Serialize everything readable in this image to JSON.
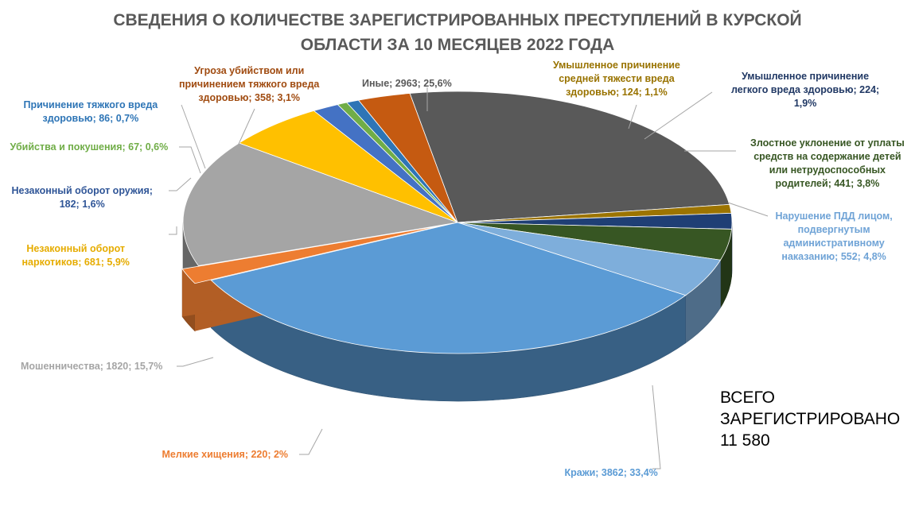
{
  "chart_data": {
    "type": "pie",
    "title": [
      "СВЕДЕНИЯ О КОЛИЧЕСТВЕ ЗАРЕГИСТРИРОВАННЫХ ПРЕСТУПЛЕНИЙ В КУРСКОЙ",
      "ОБЛАСТИ ЗА 10 МЕСЯЦЕВ 2022 ГОДА"
    ],
    "slices": [
      {
        "name": "Иные",
        "value": 2963,
        "percent": "25,6%",
        "color": "#595959",
        "label_lines": [
          "Иные; 2963; 25,6%"
        ],
        "label_color": "#595959"
      },
      {
        "name": "Умышленное причинение средней тяжести вреда здоровью",
        "value": 124,
        "percent": "1,1%",
        "color": "#9C7400",
        "label_lines": [
          "Умышленное причинение",
          "средней тяжести вреда",
          "здоровью; 124; 1,1%"
        ],
        "label_color": "#997300"
      },
      {
        "name": "Умышленное причинение легкого вреда здоровью",
        "value": 224,
        "percent": "1,9%",
        "color": "#1F3F75",
        "label_lines": [
          "Умышленное причинение",
          "легкого вреда здоровью; 224;",
          "1,9%"
        ],
        "label_color": "#203864"
      },
      {
        "name": "Злостное уклонение от уплаты средств на содержание детей или нетрудоспособных родителей",
        "value": 441,
        "percent": "3,8%",
        "color": "#375623",
        "label_lines": [
          "Злостное уклонение от уплаты",
          "средств на содержание детей",
          "или нетрудоспособных",
          "родителей; 441; 3,8%"
        ],
        "label_color": "#375623"
      },
      {
        "name": "Нарушение ПДД лицом, подвергнутым административному наказанию",
        "value": 552,
        "percent": "4,8%",
        "color": "#7EAEDB",
        "label_lines": [
          "Нарушение ПДД лицом,",
          "подвергнутым",
          "административному",
          "наказанию; 552; 4,8%"
        ],
        "label_color": "#6FA3D6"
      },
      {
        "name": "Кражи",
        "value": 3862,
        "percent": "33,4%",
        "color": "#5B9BD5",
        "label_lines": [
          "Кражи; 3862; 33,4%"
        ],
        "label_color": "#5B9BD5"
      },
      {
        "name": "Мелкие хищения",
        "value": 220,
        "percent": "2%",
        "color": "#ED7D31",
        "label_lines": [
          "Мелкие хищения; 220; 2%"
        ],
        "label_color": "#ED7D31"
      },
      {
        "name": "Мошенничества",
        "value": 1820,
        "percent": "15,7%",
        "color": "#A5A5A5",
        "label_lines": [
          "Мошенничества; 1820; 15,7%"
        ],
        "label_color": "#A5A5A5"
      },
      {
        "name": "Незаконный оборот наркотиков",
        "value": 681,
        "percent": "5,9%",
        "color": "#FFC000",
        "label_lines": [
          "Незаконный оборот",
          "наркотиков; 681; 5,9%"
        ],
        "label_color": "#E6AC00"
      },
      {
        "name": "Незаконный оборот оружия",
        "value": 182,
        "percent": "1,6%",
        "color": "#4472C4",
        "label_lines": [
          "Незаконный оборот оружия;",
          "182; 1,6%"
        ],
        "label_color": "#2F5597"
      },
      {
        "name": "Убийства и покушения",
        "value": 67,
        "percent": "0,6%",
        "color": "#70AD47",
        "label_lines": [
          "Убийства и покушения; 67; 0,6%"
        ],
        "label_color": "#70AD47"
      },
      {
        "name": "Причинение тяжкого вреда здоровью",
        "value": 86,
        "percent": "0,7%",
        "color": "#2E75B6",
        "label_lines": [
          "Причинение тяжкого вреда",
          "здоровью; 86; 0,7%"
        ],
        "label_color": "#2E75B6"
      },
      {
        "name": "Угроза убийством или причинением тяжкого вреда здоровью",
        "value": 358,
        "percent": "3,1%",
        "color": "#C55A11",
        "label_lines": [
          "Угроза убийством или",
          "причинением тяжкого вреда",
          "здоровью; 358; 3,1%"
        ],
        "label_color": "#A04B10"
      }
    ]
  },
  "total": [
    "ВСЕГО",
    "ЗАРЕГИСТРИРОВАНО",
    "11 580"
  ]
}
